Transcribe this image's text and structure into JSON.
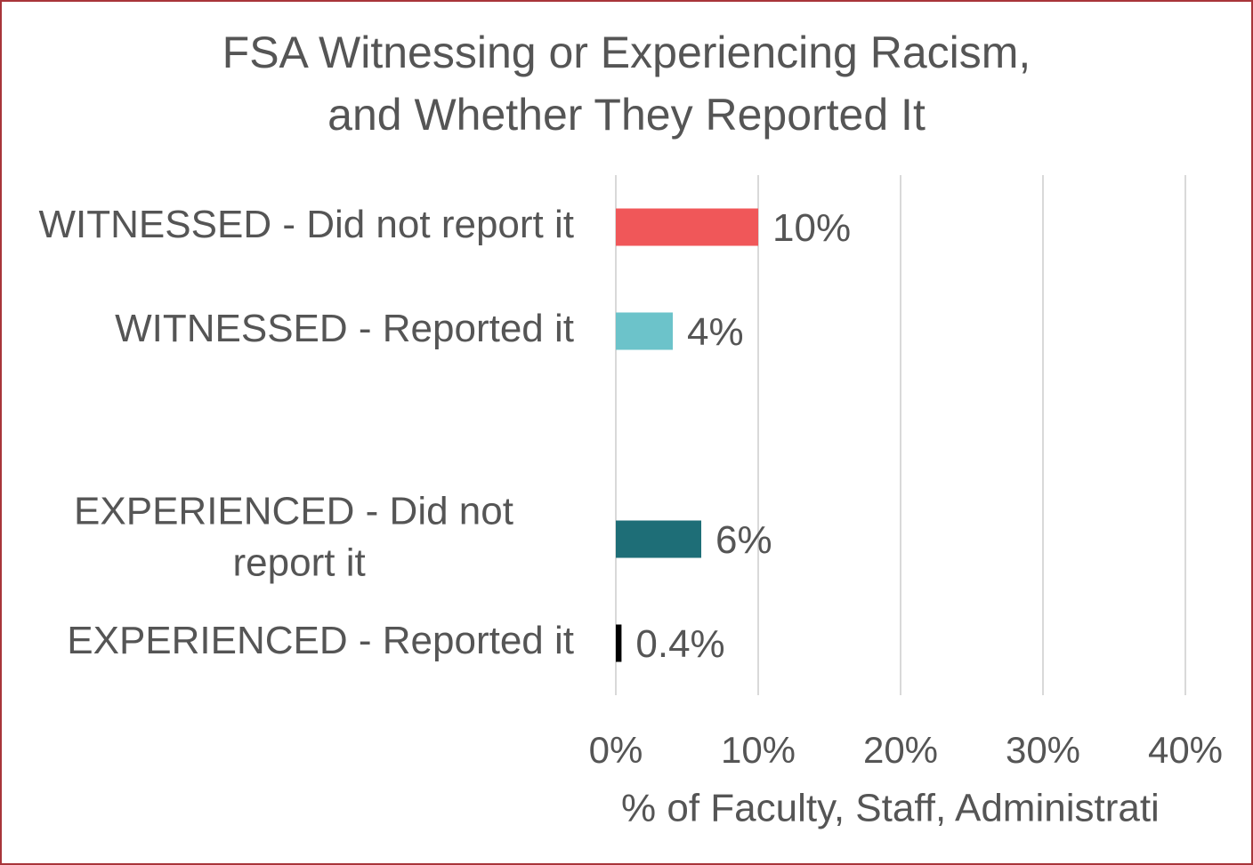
{
  "chart_data": {
    "type": "bar",
    "orientation": "horizontal",
    "title": [
      "FSA Witnessing or Experiencing Racism,",
      "and Whether They Reported It"
    ],
    "categories": [
      "WITNESSED - Did not report it",
      "WITNESSED - Reported it",
      null,
      "EXPERIENCED - Did not report it",
      "EXPERIENCED - Reported it"
    ],
    "values": [
      10,
      4,
      null,
      6,
      0.4
    ],
    "value_labels": [
      "10%",
      "4%",
      null,
      "6%",
      "0.4%"
    ],
    "colors": [
      "#f05759",
      "#6cc3ca",
      "#860f0f",
      "#1e6e77",
      null
    ],
    "xlabel": "% of Faculty, Staff, Administrati",
    "xlim": [
      0,
      40
    ],
    "xticks": [
      {
        "value": 0,
        "label": "0%"
      },
      {
        "value": 10,
        "label": "10%"
      },
      {
        "value": 20,
        "label": "20%"
      },
      {
        "value": 30,
        "label": "30%"
      },
      {
        "value": 40,
        "label": "40%"
      }
    ],
    "grid": true
  }
}
